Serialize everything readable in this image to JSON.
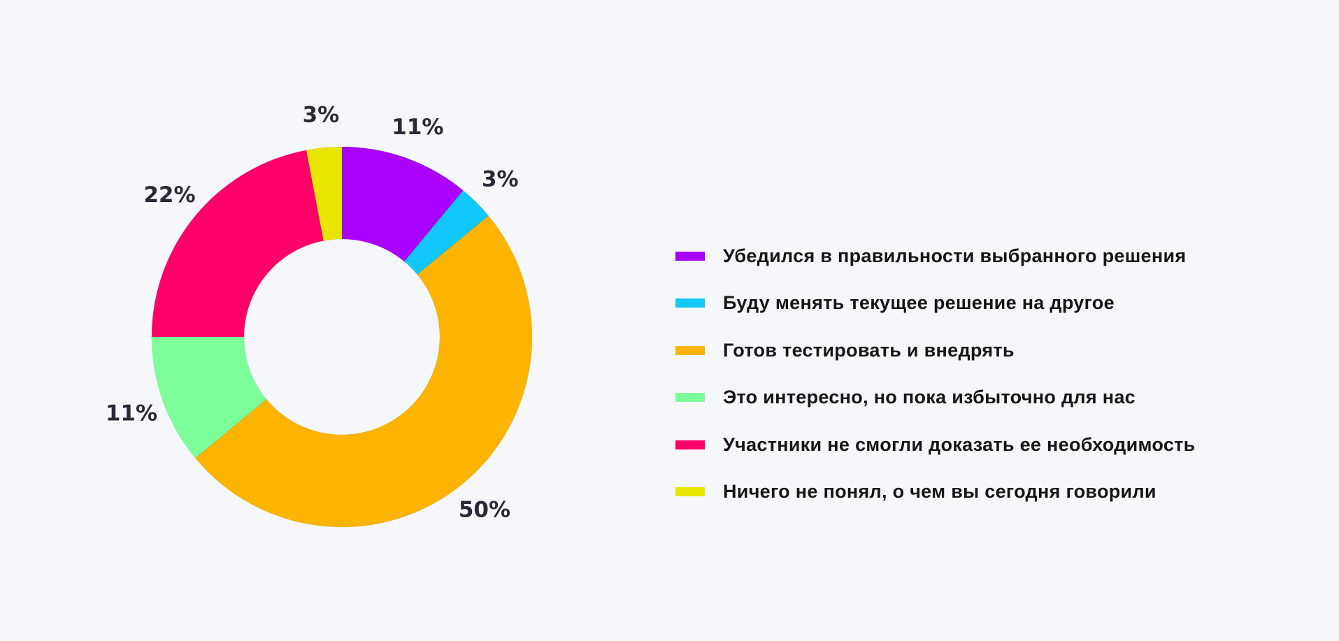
{
  "chart_data": {
    "type": "pie",
    "donut": true,
    "start": "top",
    "direction": "clockwise",
    "categories": [
      "Убедился в правильности выбранного решения",
      "Буду менять текущее решение на другое",
      "Готов тестировать и внедрять",
      "Это интересно, но пока избыточно для нас",
      "Участники не смогли доказать ее необходимость",
      "Ничего не понял, о чем вы сегодня говорили"
    ],
    "values": [
      11,
      3,
      50,
      11,
      22,
      3
    ],
    "labels": [
      "11%",
      "3%",
      "50%",
      "11%",
      "22%",
      "3%"
    ],
    "colors": [
      "#aa00ff",
      "#12c8fa",
      "#ffb400",
      "#7dff9a",
      "#ff0069",
      "#e8e600"
    ],
    "legend_position": "right"
  }
}
